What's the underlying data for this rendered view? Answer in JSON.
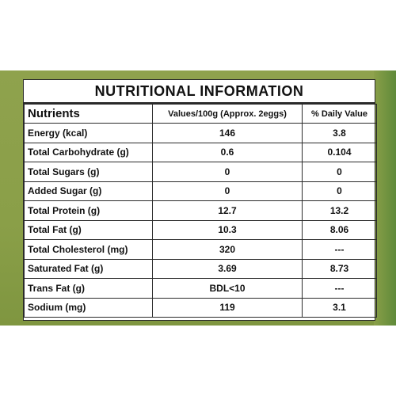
{
  "title": "NUTRITIONAL INFORMATION",
  "headers": [
    "Nutrients",
    "Values/100g (Approx. 2eggs)",
    "% Daily Value"
  ],
  "rows": [
    [
      "Energy (kcal)",
      "146",
      "3.8"
    ],
    [
      "Total Carbohydrate (g)",
      "0.6",
      "0.104"
    ],
    [
      "Total Sugars (g)",
      "0",
      "0"
    ],
    [
      "Added Sugar (g)",
      "0",
      "0"
    ],
    [
      "Total Protein (g)",
      "12.7",
      "13.2"
    ],
    [
      "Total Fat (g)",
      "10.3",
      "8.06"
    ],
    [
      "Total Cholesterol (mg)",
      "320",
      "---"
    ],
    [
      "Saturated Fat (g)",
      "3.69",
      "8.73"
    ],
    [
      "Trans Fat (g)",
      "BDL<10",
      "---"
    ],
    [
      "Sodium (mg)",
      "119",
      "3.1"
    ]
  ],
  "colors": {
    "package_green": "#8a9f48",
    "panel_bg": "#ffffff",
    "text": "#111111"
  }
}
